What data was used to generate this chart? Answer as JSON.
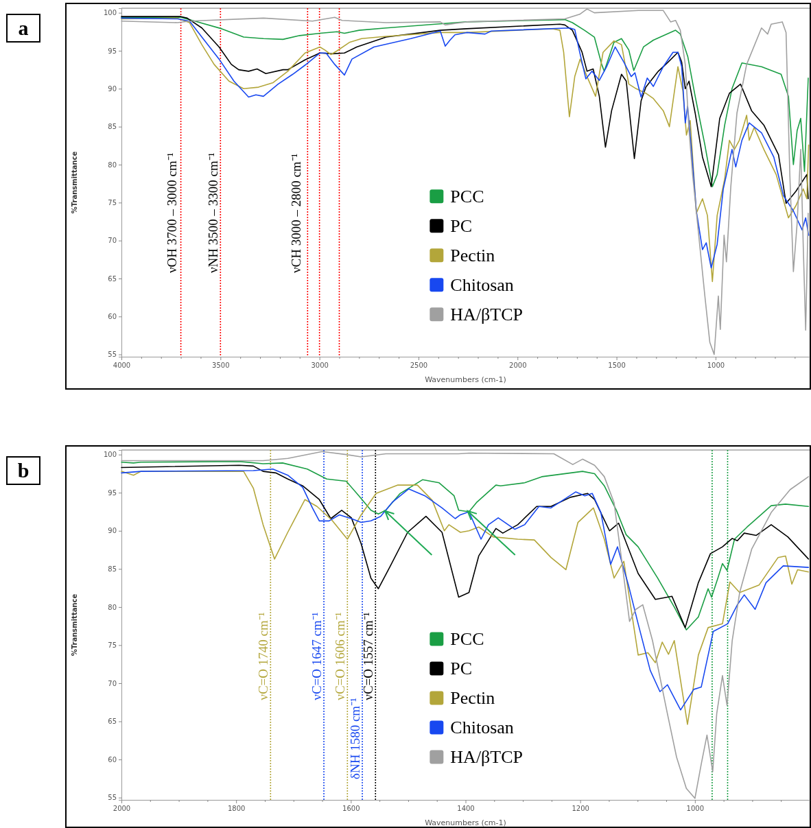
{
  "chart_data": [
    {
      "type": "line",
      "title": "a",
      "xlabel": "Wavenumbers (cm-1)",
      "ylabel": "%Transmittance",
      "xlim": [
        4000,
        525
      ],
      "ylim": [
        54.7,
        100.6
      ],
      "xticks": [
        4000,
        {
          "value": 3900,
          "label": null
        },
        {
          "value": 3800,
          "label": null
        },
        {
          "value": 3700,
          "label": null
        },
        {
          "value": 3600,
          "label": null
        },
        3500,
        {
          "value": 3400,
          "label": null
        },
        {
          "value": 3300,
          "label": null
        },
        {
          "value": 3200,
          "label": null
        },
        {
          "value": 3100,
          "label": null
        },
        3000,
        {
          "value": 2900,
          "label": null
        },
        {
          "value": 2800,
          "label": null
        },
        {
          "value": 2700,
          "label": null
        },
        {
          "value": 2600,
          "label": null
        },
        2500,
        {
          "value": 2400,
          "label": null
        },
        {
          "value": 2300,
          "label": null
        },
        {
          "value": 2200,
          "label": null
        },
        {
          "value": 2100,
          "label": null
        },
        2000,
        {
          "value": 1900,
          "label": null
        },
        {
          "value": 1800,
          "label": null
        },
        {
          "value": 1700,
          "label": null
        },
        {
          "value": 1600,
          "label": null
        },
        1500,
        {
          "value": 1400,
          "label": null
        },
        {
          "value": 1300,
          "label": null
        },
        {
          "value": 1200,
          "label": null
        },
        {
          "value": 1100,
          "label": null
        },
        1000,
        {
          "value": 900,
          "label": null
        },
        {
          "value": 800,
          "label": null
        },
        {
          "value": 700,
          "label": null
        },
        {
          "value": 600,
          "label": null
        }
      ],
      "yticks": [
        55,
        60,
        65,
        70,
        75,
        80,
        85,
        90,
        95,
        100
      ],
      "legend": "center",
      "series": [
        {
          "name": "PCC",
          "color": "#1a9e44",
          "x": [
            4000,
            3700,
            3630,
            3494,
            3383,
            3283,
            3184,
            3100,
            2998,
            2911,
            2874,
            2800,
            2663,
            2415,
            2257,
            1761,
            1723,
            1662,
            1612,
            1575,
            1562,
            1513,
            1475,
            1438,
            1413,
            1364,
            1314,
            1202,
            1178,
            1140,
            1103,
            1054,
            1016,
            992,
            954,
            917,
            867,
            768,
            669,
            632,
            607,
            588,
            570,
            551,
            532
          ],
          "values": [
            99.4,
            99.4,
            98.9,
            97.9,
            96.8,
            96.6,
            96.5,
            97.0,
            97.3,
            97.5,
            97.3,
            97.7,
            98.0,
            98.5,
            98.8,
            99.1,
            98.7,
            97.7,
            96.8,
            93.2,
            92.3,
            96.1,
            96.6,
            95.1,
            92.4,
            95.5,
            96.4,
            97.7,
            97.2,
            94.2,
            89.0,
            82.6,
            77.1,
            78.7,
            85.2,
            90.0,
            93.4,
            92.9,
            91.9,
            89.0,
            80.0,
            84.5,
            86.1,
            79.1,
            91.4
          ]
        },
        {
          "name": "PC",
          "color": "#000000",
          "x": [
            4000,
            3700,
            3668,
            3594,
            3507,
            3445,
            3408,
            3358,
            3315,
            3271,
            3184,
            3160,
            3073,
            2998,
            2936,
            2874,
            2812,
            2663,
            2390,
            2257,
            1786,
            1761,
            1723,
            1674,
            1649,
            1618,
            1587,
            1556,
            1525,
            1475,
            1451,
            1410,
            1376,
            1352,
            1289,
            1240,
            1190,
            1171,
            1153,
            1134,
            1103,
            1066,
            1022,
            979,
            930,
            874,
            818,
            756,
            682,
            644,
            594,
            539,
            532
          ],
          "values": [
            99.5,
            99.5,
            99.3,
            98.0,
            95.5,
            93.2,
            92.5,
            92.3,
            92.6,
            92.0,
            92.5,
            92.5,
            93.8,
            94.7,
            94.6,
            94.7,
            95.5,
            96.8,
            97.7,
            97.9,
            98.5,
            98.4,
            97.7,
            94.8,
            92.3,
            92.6,
            89.0,
            82.3,
            87.1,
            91.9,
            91.0,
            80.8,
            88.4,
            90.2,
            92.3,
            93.5,
            94.8,
            93.5,
            90.0,
            91.0,
            86.8,
            81.0,
            77.1,
            86.1,
            89.4,
            90.6,
            87.1,
            85.2,
            81.3,
            74.9,
            76.5,
            78.7,
            75.5
          ]
        },
        {
          "name": "Pectin",
          "color": "#b3a63a",
          "x": [
            4000,
            3717,
            3656,
            3594,
            3532,
            3457,
            3383,
            3308,
            3234,
            3160,
            3073,
            2998,
            2973,
            2942,
            2911,
            2849,
            2787,
            2663,
            2390,
            2257,
            1823,
            1786,
            1767,
            1738,
            1711,
            1684,
            1649,
            1606,
            1568,
            1513,
            1475,
            1438,
            1401,
            1352,
            1314,
            1264,
            1233,
            1190,
            1165,
            1147,
            1128,
            1097,
            1066,
            1041,
            1016,
            992,
            954,
            930,
            905,
            880,
            843,
            830,
            805,
            756,
            694,
            632,
            594,
            557,
            539,
            530
          ],
          "values": [
            99.2,
            99.3,
            98.7,
            95.8,
            93.2,
            91.0,
            90.0,
            90.2,
            90.8,
            92.3,
            94.7,
            95.5,
            95.1,
            94.5,
            95.0,
            96.1,
            96.6,
            96.9,
            97.4,
            97.4,
            97.9,
            97.7,
            94.8,
            86.3,
            91.6,
            93.9,
            91.6,
            89.0,
            94.8,
            96.3,
            95.8,
            90.6,
            90.0,
            89.4,
            88.7,
            87.1,
            85.0,
            92.9,
            89.7,
            83.9,
            85.8,
            73.6,
            75.5,
            73.3,
            64.6,
            73.3,
            78.1,
            83.2,
            82.0,
            83.2,
            86.5,
            83.2,
            84.9,
            82.0,
            78.7,
            73.0,
            74.6,
            76.8,
            75.5,
            82.6
          ]
        },
        {
          "name": "Chitosan",
          "color": "#1848f0",
          "x": [
            4000,
            3717,
            3656,
            3594,
            3507,
            3432,
            3358,
            3321,
            3283,
            3209,
            3135,
            3073,
            2998,
            2967,
            2923,
            2874,
            2836,
            2725,
            2539,
            2390,
            2365,
            2341,
            2316,
            2257,
            2164,
            2133,
            1736,
            1711,
            1686,
            1655,
            1624,
            1587,
            1550,
            1507,
            1463,
            1426,
            1407,
            1376,
            1345,
            1314,
            1264,
            1215,
            1190,
            1171,
            1153,
            1141,
            1122,
            1097,
            1066,
            1047,
            1022,
            992,
            961,
            917,
            898,
            867,
            830,
            768,
            706,
            657,
            607,
            563,
            545,
            530
          ],
          "values": [
            99.3,
            99.2,
            98.9,
            96.8,
            93.9,
            91.0,
            88.9,
            89.2,
            89.0,
            90.6,
            91.9,
            93.1,
            94.7,
            94.7,
            93.2,
            91.8,
            93.9,
            95.5,
            96.6,
            97.6,
            95.6,
            96.4,
            97.1,
            97.4,
            97.2,
            97.6,
            98.0,
            97.8,
            94.8,
            91.3,
            92.3,
            91.1,
            92.9,
            95.5,
            93.5,
            91.6,
            92.1,
            88.9,
            91.4,
            90.3,
            92.9,
            94.8,
            94.8,
            92.9,
            85.5,
            87.7,
            82.0,
            73.9,
            68.8,
            69.7,
            66.4,
            69.5,
            76.8,
            82.0,
            79.7,
            83.2,
            85.5,
            84.2,
            81.0,
            75.9,
            73.9,
            71.4,
            73.0,
            70.7
          ]
        },
        {
          "name": "HA/βTCP",
          "color": "#a0a0a0",
          "x": [
            4000,
            3717,
            3656,
            3283,
            3035,
            2923,
            2886,
            2663,
            2390,
            2365,
            2316,
            2257,
            1761,
            1686,
            1649,
            1612,
            1389,
            1264,
            1227,
            1202,
            1178,
            1153,
            1134,
            1116,
            1085,
            1054,
            1029,
            1007,
            986,
            976,
            957,
            945,
            923,
            892,
            843,
            768,
            737,
            719,
            663,
            644,
            625,
            607,
            588,
            570,
            557,
            545,
            532
          ],
          "values": [
            98.9,
            98.7,
            98.9,
            99.3,
            98.9,
            99.4,
            99.0,
            98.7,
            98.8,
            98.4,
            98.6,
            98.8,
            99.2,
            99.8,
            100.5,
            100.0,
            100.3,
            100.3,
            98.8,
            99.0,
            97.7,
            93.2,
            84.5,
            78.7,
            70.7,
            62.7,
            56.6,
            55.0,
            62.7,
            58.3,
            70.7,
            67.2,
            77.1,
            86.8,
            93.2,
            98.0,
            97.2,
            98.5,
            98.8,
            97.4,
            78.7,
            65.9,
            72.3,
            82.0,
            69.1,
            58.2,
            73.6
          ]
        }
      ],
      "ref_lines": [
        {
          "axis": "x",
          "value": 3700,
          "color": "#ff0000",
          "line_style": "dotted"
        },
        {
          "axis": "x",
          "value": 3500,
          "color": "#ff0000",
          "line_style": "dotted"
        },
        {
          "axis": "x",
          "value": 3060,
          "color": "#ff0000",
          "line_style": "dotted"
        },
        {
          "axis": "x",
          "value": 3000,
          "color": "#ff0000",
          "line_style": "dotted"
        },
        {
          "axis": "x",
          "value": 2900,
          "color": "#ff0000",
          "line_style": "dotted"
        }
      ],
      "annotations": [
        "νOH 3700 – 3000 cm⁻¹",
        "νNH 3500 – 3300 cm⁻¹",
        "νCH 3000 – 2800 cm⁻¹"
      ]
    },
    {
      "type": "line",
      "title": "b",
      "xlabel": "Wavenumbers (cm-1)",
      "ylabel": "%Transmittance",
      "xlim": [
        2000,
        800
      ],
      "ylim": [
        54.7,
        100.6
      ],
      "xticks": [
        2000,
        {
          "value": 1950,
          "label": null
        },
        {
          "value": 1900,
          "label": null
        },
        {
          "value": 1850,
          "label": null
        },
        1800,
        {
          "value": 1750,
          "label": null
        },
        {
          "value": 1700,
          "label": null
        },
        {
          "value": 1650,
          "label": null
        },
        1600,
        {
          "value": 1550,
          "label": null
        },
        {
          "value": 1500,
          "label": null
        },
        {
          "value": 1450,
          "label": null
        },
        1400,
        {
          "value": 1350,
          "label": null
        },
        {
          "value": 1300,
          "label": null
        },
        {
          "value": 1250,
          "label": null
        },
        1200,
        {
          "value": 1150,
          "label": null
        },
        {
          "value": 1100,
          "label": null
        },
        {
          "value": 1050,
          "label": null
        },
        1000,
        {
          "value": 950,
          "label": null
        },
        {
          "value": 900,
          "label": null
        },
        {
          "value": 850,
          "label": null
        }
      ],
      "yticks": [
        55,
        60,
        65,
        70,
        75,
        80,
        85,
        90,
        95,
        100
      ],
      "legend": "center",
      "series": [
        {
          "name": "PCC",
          "color": "#1a9e44",
          "x": [
            2000,
            1979,
            1966,
            1795,
            1753,
            1719,
            1676,
            1642,
            1608,
            1586,
            1565,
            1552,
            1539,
            1514,
            1475,
            1446,
            1420,
            1412,
            1394,
            1381,
            1347,
            1339,
            1297,
            1267,
            1196,
            1175,
            1158,
            1137,
            1120,
            1099,
            1065,
            1036,
            1015,
            994,
            977,
            971,
            960,
            952,
            944,
            931,
            909,
            867,
            842,
            802
          ],
          "values": [
            99.0,
            98.9,
            99.0,
            99.1,
            98.8,
            98.9,
            98.1,
            96.8,
            96.5,
            94.6,
            92.7,
            92.2,
            92.7,
            94.9,
            96.7,
            96.3,
            94.6,
            92.7,
            92.5,
            93.7,
            96.0,
            95.9,
            96.3,
            97.1,
            97.8,
            97.5,
            95.9,
            92.7,
            89.5,
            87.9,
            83.8,
            80.0,
            77.0,
            78.7,
            82.4,
            81.3,
            83.8,
            85.7,
            84.8,
            88.9,
            90.5,
            93.3,
            93.5,
            93.2
          ]
        },
        {
          "name": "PC",
          "color": "#000000",
          "x": [
            2000,
            1795,
            1770,
            1753,
            1731,
            1710,
            1684,
            1655,
            1635,
            1616,
            1599,
            1582,
            1565,
            1552,
            1531,
            1501,
            1469,
            1441,
            1412,
            1394,
            1377,
            1347,
            1335,
            1309,
            1276,
            1251,
            1217,
            1187,
            1175,
            1149,
            1133,
            1099,
            1069,
            1040,
            1017,
            994,
            973,
            952,
            935,
            926,
            914,
            893,
            867,
            838,
            802
          ],
          "values": [
            98.3,
            98.6,
            98.5,
            97.8,
            97.6,
            96.8,
            95.9,
            94.1,
            91.6,
            92.7,
            91.7,
            88.3,
            83.8,
            82.4,
            85.4,
            89.8,
            91.9,
            89.8,
            81.3,
            81.9,
            86.7,
            90.3,
            89.7,
            90.8,
            93.2,
            93.2,
            94.4,
            94.9,
            94.1,
            90.0,
            91.0,
            84.4,
            81.0,
            81.4,
            77.3,
            83.2,
            87.0,
            87.9,
            89.0,
            88.7,
            89.7,
            89.4,
            90.8,
            89.2,
            86.3
          ]
        },
        {
          "name": "Pectin",
          "color": "#b3a63a",
          "x": [
            2000,
            1979,
            1966,
            1787,
            1770,
            1753,
            1733,
            1710,
            1680,
            1659,
            1633,
            1606,
            1582,
            1556,
            1518,
            1484,
            1458,
            1437,
            1429,
            1409,
            1394,
            1377,
            1352,
            1309,
            1280,
            1251,
            1225,
            1204,
            1177,
            1158,
            1141,
            1124,
            1099,
            1082,
            1069,
            1057,
            1046,
            1036,
            1013,
            994,
            977,
            952,
            939,
            922,
            901,
            888,
            855,
            842,
            831,
            821,
            802
          ],
          "values": [
            97.8,
            97.3,
            97.8,
            97.8,
            95.6,
            90.8,
            86.3,
            89.8,
            94.1,
            93.2,
            91.4,
            88.9,
            92.1,
            94.9,
            96.0,
            96.0,
            94.0,
            90.0,
            90.8,
            89.8,
            90.0,
            90.5,
            89.2,
            88.9,
            88.8,
            86.5,
            84.9,
            91.1,
            93.0,
            88.9,
            83.8,
            86.0,
            73.7,
            74.0,
            72.7,
            75.4,
            73.8,
            75.6,
            64.6,
            73.7,
            77.3,
            77.8,
            83.3,
            81.9,
            82.5,
            82.9,
            86.5,
            86.7,
            83.0,
            84.9,
            84.6
          ]
        },
        {
          "name": "Chitosan",
          "color": "#1848f0",
          "x": [
            2000,
            1966,
            1770,
            1736,
            1710,
            1684,
            1667,
            1655,
            1638,
            1620,
            1599,
            1582,
            1565,
            1548,
            1527,
            1499,
            1471,
            1441,
            1418,
            1409,
            1394,
            1373,
            1360,
            1343,
            1314,
            1297,
            1272,
            1251,
            1208,
            1192,
            1179,
            1164,
            1147,
            1135,
            1116,
            1099,
            1078,
            1061,
            1048,
            1025,
            1002,
            989,
            968,
            943,
            926,
            914,
            895,
            876,
            846,
            802
          ],
          "values": [
            97.6,
            97.8,
            97.9,
            98.1,
            97.3,
            95.7,
            93.0,
            91.3,
            91.3,
            92.1,
            91.6,
            91.1,
            91.3,
            91.9,
            93.8,
            95.5,
            94.6,
            93.0,
            91.6,
            92.1,
            92.5,
            88.9,
            90.8,
            91.7,
            90.2,
            90.8,
            93.2,
            93.0,
            95.1,
            94.6,
            94.9,
            92.4,
            85.6,
            87.9,
            82.9,
            77.8,
            71.7,
            68.9,
            69.8,
            66.5,
            69.2,
            69.5,
            76.8,
            77.8,
            80.3,
            81.6,
            79.7,
            83.2,
            85.4,
            85.2
          ]
        },
        {
          "name": "HA/βTCP",
          "color": "#a0a0a0",
          "x": [
            2000,
            1753,
            1710,
            1650,
            1608,
            1582,
            1539,
            1412,
            1394,
            1246,
            1213,
            1196,
            1175,
            1158,
            1141,
            1128,
            1114,
            1103,
            1091,
            1074,
            1048,
            1032,
            1015,
            1000,
            989,
            979,
            969,
            962,
            952,
            944,
            935,
            922,
            901,
            867,
            834,
            802
          ],
          "values": [
            99.2,
            99.2,
            99.5,
            100.4,
            100.0,
            99.7,
            100.1,
            100.1,
            100.2,
            100.1,
            98.7,
            99.4,
            98.6,
            97.1,
            93.7,
            86.3,
            78.1,
            79.7,
            80.3,
            75.6,
            66.0,
            60.3,
            56.2,
            54.9,
            59.4,
            63.2,
            58.4,
            66.0,
            71.0,
            67.1,
            75.6,
            81.9,
            87.6,
            92.4,
            95.4,
            97.1
          ]
        }
      ],
      "ref_lines": [
        {
          "axis": "x",
          "value": 1740,
          "label": "νC=O 1740 cm⁻¹",
          "color": "#b3a63a",
          "line_style": "dotted"
        },
        {
          "axis": "x",
          "value": 1647,
          "label": "νC=O 1647 cm⁻¹",
          "color": "#1848f0",
          "line_style": "dotted"
        },
        {
          "axis": "x",
          "value": 1606,
          "label": "νC=O 1606 cm⁻¹",
          "color": "#b3a63a",
          "line_style": "dotted"
        },
        {
          "axis": "x",
          "value": 1580,
          "label": "δNH  1580 cm⁻¹",
          "color": "#1848f0",
          "line_style": "dotted"
        },
        {
          "axis": "x",
          "value": 1557,
          "label": "νC=O  1557 cm⁻¹",
          "color": "#000000",
          "line_style": "dotted"
        },
        {
          "axis": "x",
          "value": 970,
          "color": "#1a9e44",
          "line_style": "dotted"
        },
        {
          "axis": "x",
          "value": 943,
          "color": "#1a9e44",
          "line_style": "dotted"
        }
      ]
    }
  ]
}
